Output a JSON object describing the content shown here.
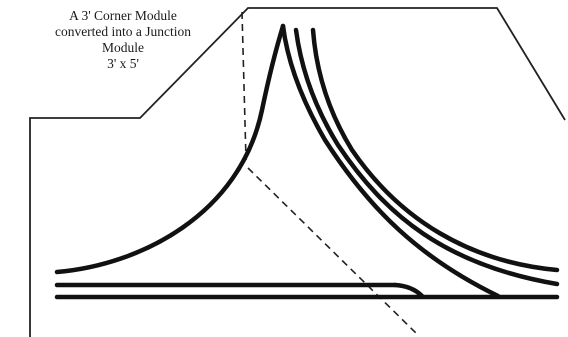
{
  "title": {
    "line1": "A 3' Corner Module",
    "line2": "converted into a Junction",
    "line3": "Module",
    "dimensions": "3' x 5'"
  },
  "colors": {
    "background": "#ffffff",
    "line": "#111111"
  }
}
